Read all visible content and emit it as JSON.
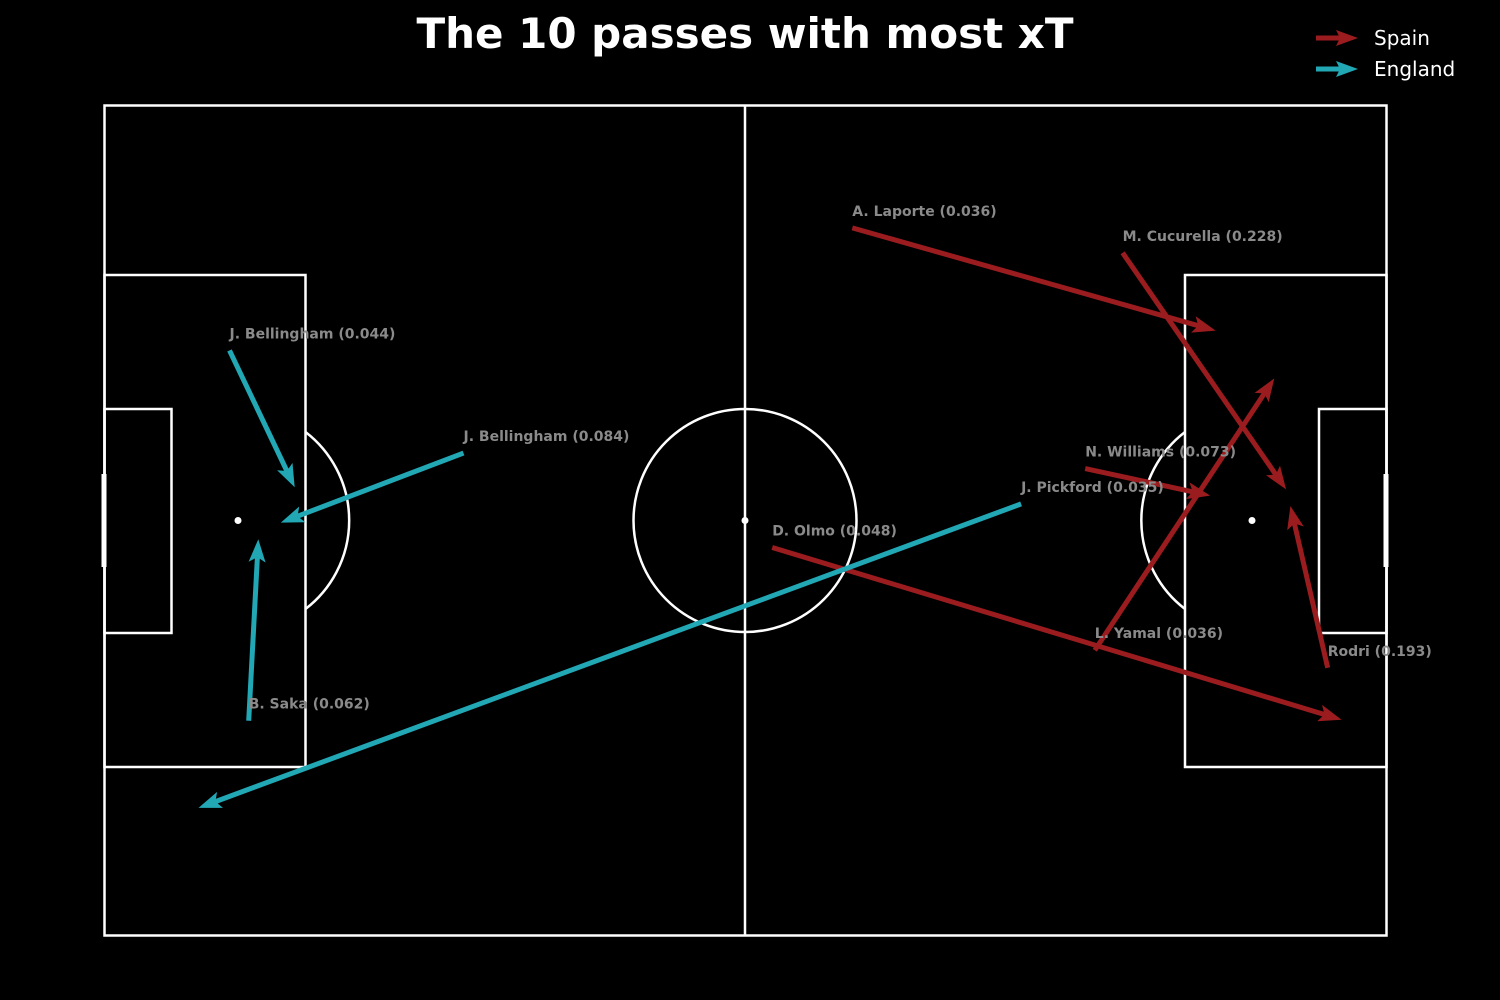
{
  "chart_data": {
    "type": "pass-map",
    "title": "The 10 passes with most xT",
    "pitch": {
      "length": 120,
      "width": 80,
      "line_color": "#ffffff",
      "background": "#000000"
    },
    "label_color": "#8a8a8a",
    "legend": {
      "placement": "top-right",
      "entries": [
        {
          "team": "Spain",
          "color": "#9b1c1f"
        },
        {
          "team": "England",
          "color": "#22a7b5"
        }
      ]
    },
    "series": [
      {
        "name": "Spain",
        "color": "#9b1c1f",
        "passes": [
          {
            "label": "A. Laporte (0.036)",
            "player": "A. Laporte",
            "xt": 0.036,
            "x": 70.0,
            "y": 11.8,
            "end_x": 104.0,
            "end_y": 21.7
          },
          {
            "label": "M. Cucurella (0.228)",
            "player": "M. Cucurella",
            "xt": 0.228,
            "x": 95.3,
            "y": 14.2,
            "end_x": 110.6,
            "end_y": 37.0
          },
          {
            "label": "N. Williams (0.073)",
            "player": "N. Williams",
            "xt": 0.073,
            "x": 91.8,
            "y": 35.0,
            "end_x": 103.5,
            "end_y": 37.6
          },
          {
            "label": "D. Olmo (0.048)",
            "player": "D. Olmo",
            "xt": 0.048,
            "x": 62.5,
            "y": 42.6,
            "end_x": 115.8,
            "end_y": 59.2
          },
          {
            "label": "L. Yamal (0.036)",
            "player": "L. Yamal",
            "xt": 0.036,
            "x": 92.7,
            "y": 52.5,
            "end_x": 109.5,
            "end_y": 26.3
          },
          {
            "label": "Rodri (0.193)",
            "player": "Rodri",
            "xt": 0.193,
            "x": 114.5,
            "y": 54.2,
            "end_x": 111.0,
            "end_y": 38.6
          }
        ]
      },
      {
        "name": "England",
        "color": "#22a7b5",
        "passes": [
          {
            "label": "J. Bellingham (0.044)",
            "player": "J. Bellingham",
            "xt": 0.044,
            "x": 11.7,
            "y": 23.6,
            "end_x": 17.8,
            "end_y": 36.8
          },
          {
            "label": "J. Bellingham (0.084)",
            "player": "J. Bellingham",
            "xt": 0.084,
            "x": 33.6,
            "y": 33.5,
            "end_x": 16.5,
            "end_y": 40.2
          },
          {
            "label": "J. Pickford (0.035)",
            "player": "J. Pickford",
            "xt": 0.035,
            "x": 85.8,
            "y": 38.4,
            "end_x": 8.8,
            "end_y": 67.7
          },
          {
            "label": "B. Saka (0.062)",
            "player": "B. Saka",
            "xt": 0.062,
            "x": 13.5,
            "y": 59.3,
            "end_x": 14.4,
            "end_y": 41.8
          }
        ]
      }
    ]
  }
}
